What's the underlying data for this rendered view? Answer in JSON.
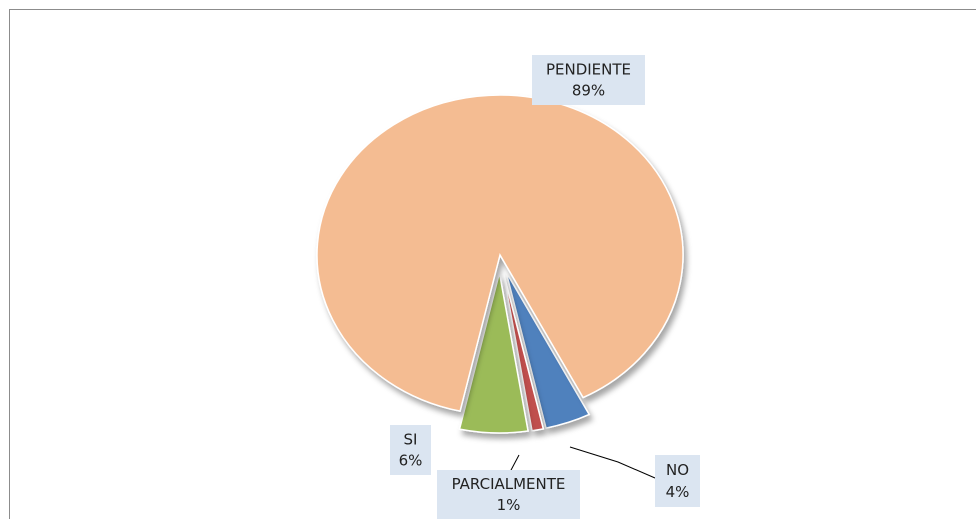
{
  "chart_data": {
    "type": "pie",
    "categories": [
      "NO",
      "PARCIALMENTE",
      "SI",
      "PENDIENTE"
    ],
    "values": [
      4,
      1,
      6,
      89
    ],
    "value_labels": [
      "4%",
      "1%",
      "6%",
      "89%"
    ],
    "colors": [
      "#4f81bd",
      "#c0504d",
      "#9bbb59",
      "#f4bc92"
    ]
  }
}
